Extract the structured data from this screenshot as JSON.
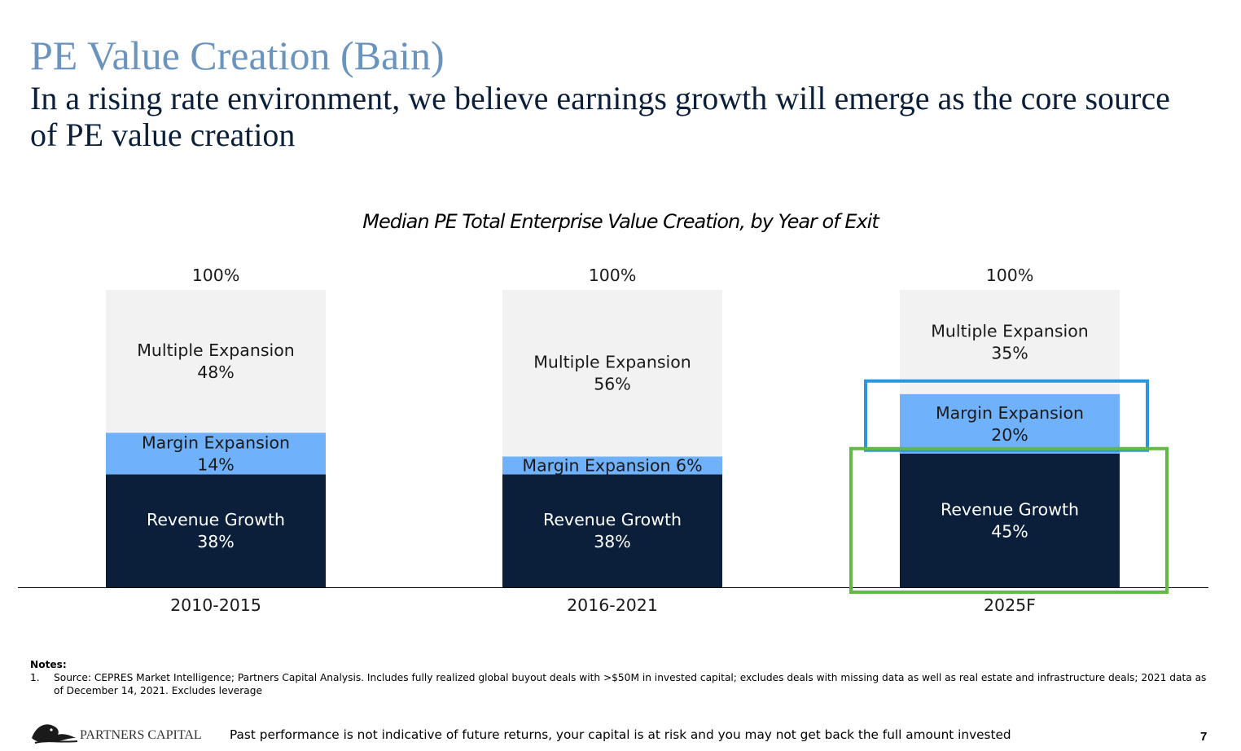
{
  "header": {
    "title": "PE Value Creation (Bain)",
    "subtitle": "In a rising rate environment, we believe earnings growth will emerge as the core source of PE value creation"
  },
  "chart_data": {
    "type": "bar",
    "stacked": true,
    "title": "Median PE Total Enterprise Value Creation, by Year of Exit",
    "xlabel": "",
    "ylabel": "",
    "ylim": [
      0,
      100
    ],
    "grid": false,
    "categories": [
      "2010-2015",
      "2016-2021",
      "2025F"
    ],
    "totals": [
      "100%",
      "100%",
      "100%"
    ],
    "series": [
      {
        "name": "Revenue Growth",
        "values": [
          38,
          38,
          45
        ],
        "color": "#0b1f3a",
        "labels": [
          "Revenue Growth\n38%",
          "Revenue Growth\n38%",
          "Revenue Growth\n45%"
        ]
      },
      {
        "name": "Margin Expansion",
        "values": [
          14,
          6,
          20
        ],
        "color": "#70b1fb",
        "labels": [
          "Margin Expansion\n14%",
          "Margin Expansion 6%",
          "Margin Expansion\n20%"
        ]
      },
      {
        "name": "Multiple Expansion",
        "values": [
          48,
          56,
          35
        ],
        "color": "#f2f2f2",
        "labels": [
          "Multiple Expansion\n48%",
          "Multiple Expansion\n56%",
          "Multiple Expansion\n35%"
        ]
      }
    ],
    "highlights": [
      {
        "category": "2025F",
        "series": "Margin Expansion",
        "color": "#2b96e0"
      },
      {
        "category": "2025F",
        "series": "Revenue Growth",
        "color": "#62b946"
      }
    ]
  },
  "notes": {
    "heading": "Notes:",
    "items": [
      {
        "number": "1.",
        "text": "Source: CEPRES Market Intelligence; Partners Capital Analysis. Includes fully realized global buyout deals with >$50M in invested capital; excludes deals with missing data as well as real estate and infrastructure deals; 2021 data as of December 14, 2021. Excludes leverage"
      }
    ]
  },
  "footer": {
    "logo_text": "PARTNERS CAPITAL",
    "disclaimer": "Past performance is not indicative of future returns, your capital is at risk and you may not get back the full amount invested",
    "page_number": "7"
  }
}
